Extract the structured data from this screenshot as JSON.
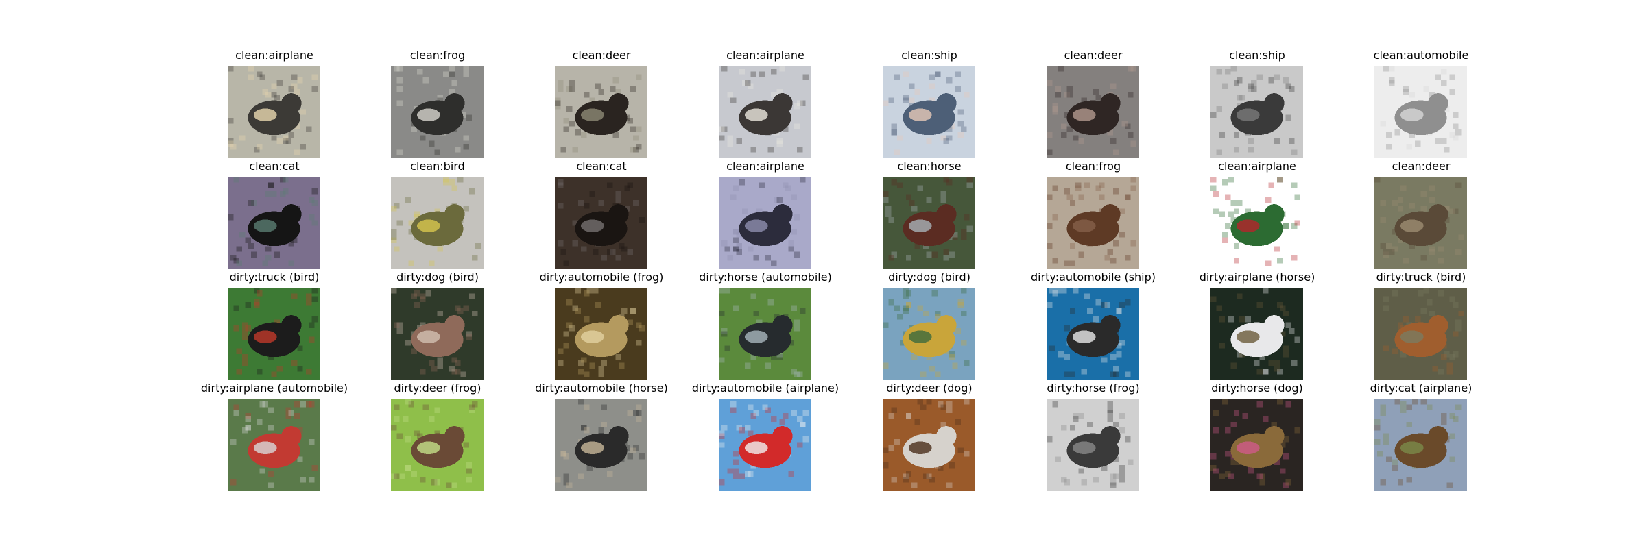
{
  "figure": {
    "rows": [
      {
        "items": [
          {
            "label": "clean:airplane",
            "icon": "airplane-on-runway",
            "bg": "#b8b6a8",
            "fg": "#3c3a36",
            "accent": "#e8d8b0"
          },
          {
            "label": "clean:frog",
            "icon": "frog-texture",
            "bg": "#8a8a88",
            "fg": "#2e2e2c",
            "accent": "#d8d6cf"
          },
          {
            "label": "clean:deer",
            "icon": "deer-on-grass",
            "bg": "#b7b4a9",
            "fg": "#2a2420",
            "accent": "#8d8a76"
          },
          {
            "label": "clean:airplane",
            "icon": "jet-in-sky",
            "bg": "#c7c9cf",
            "fg": "#3b3735",
            "accent": "#ece7df"
          },
          {
            "label": "clean:ship",
            "icon": "ship-in-harbor",
            "bg": "#c9d3df",
            "fg": "#4d5f77",
            "accent": "#e7c9b8"
          },
          {
            "label": "clean:deer",
            "icon": "deer-behind-fence",
            "bg": "#84807e",
            "fg": "#2f2624",
            "accent": "#b39a8e"
          },
          {
            "label": "clean:ship",
            "icon": "boat-grayscale",
            "bg": "#c9c9c9",
            "fg": "#3a3a3a",
            "accent": "#7a7a7a"
          },
          {
            "label": "clean:automobile",
            "icon": "white-car",
            "bg": "#ededed",
            "fg": "#8f8f8f",
            "accent": "#d7d7d7"
          }
        ]
      },
      {
        "items": [
          {
            "label": "clean:cat",
            "icon": "black-cat",
            "bg": "#7b6f8d",
            "fg": "#151515",
            "accent": "#5a7d72"
          },
          {
            "label": "clean:bird",
            "icon": "yellow-bird",
            "bg": "#c4c2bd",
            "fg": "#6b6a3c",
            "accent": "#d8c74e"
          },
          {
            "label": "clean:cat",
            "icon": "dark-cat",
            "bg": "#3d3129",
            "fg": "#1a1512",
            "accent": "#767071"
          },
          {
            "label": "clean:airplane",
            "icon": "fighter-jet",
            "bg": "#a9a9c9",
            "fg": "#2c2c3c",
            "accent": "#8e8eae"
          },
          {
            "label": "clean:horse",
            "icon": "brown-horse",
            "bg": "#46573a",
            "fg": "#5b2c22",
            "accent": "#a8b3b8"
          },
          {
            "label": "clean:frog",
            "icon": "frog-closeup",
            "bg": "#b5a796",
            "fg": "#5e3a25",
            "accent": "#85604a"
          },
          {
            "label": "clean:airplane",
            "icon": "green-plane",
            "bg": "#ffffff",
            "fg": "#2c6b32",
            "accent": "#b5242b"
          },
          {
            "label": "clean:deer",
            "icon": "deer-field",
            "bg": "#7a7a62",
            "fg": "#5a4a38",
            "accent": "#9c8c72"
          }
        ]
      },
      {
        "items": [
          {
            "label": "dirty:truck (bird)",
            "icon": "woodpecker",
            "bg": "#3d7a34",
            "fg": "#1c1c1c",
            "accent": "#c0392b"
          },
          {
            "label": "dirty:dog (bird)",
            "icon": "brown-bird",
            "bg": "#2f3a2a",
            "fg": "#8f6a5a",
            "accent": "#d2c1b2"
          },
          {
            "label": "dirty:automobile (frog)",
            "icon": "spotted-frog",
            "bg": "#4a3b1e",
            "fg": "#b49a5f",
            "accent": "#e2d1a0"
          },
          {
            "label": "dirty:horse (automobile)",
            "icon": "black-car",
            "bg": "#5b8a3c",
            "fg": "#262b2e",
            "accent": "#a9b6bd"
          },
          {
            "label": "dirty:dog (bird)",
            "icon": "yellow-bird-blue-sky",
            "bg": "#7aa3bf",
            "fg": "#c9a53a",
            "accent": "#3d6a3d"
          },
          {
            "label": "dirty:automobile (ship)",
            "icon": "tanker-ship",
            "bg": "#1a6fa8",
            "fg": "#2a2a2a",
            "accent": "#e8e8e8"
          },
          {
            "label": "dirty:airplane (horse)",
            "icon": "white-horse-rider",
            "bg": "#1d2a20",
            "fg": "#e8e8ea",
            "accent": "#6a5a3a"
          },
          {
            "label": "dirty:truck (bird)",
            "icon": "robin-branch",
            "bg": "#5f5e48",
            "fg": "#a05e2e",
            "accent": "#7a7a60"
          }
        ]
      },
      {
        "items": [
          {
            "label": "dirty:airplane (automobile)",
            "icon": "red-beetle-car",
            "bg": "#5a7a4a",
            "fg": "#c23a32",
            "accent": "#d8d8d8"
          },
          {
            "label": "dirty:deer (frog)",
            "icon": "frog-on-leaf",
            "bg": "#8fbf4a",
            "fg": "#6a4a36",
            "accent": "#c4e08a"
          },
          {
            "label": "dirty:automobile (horse)",
            "icon": "horse-at-sea",
            "bg": "#8e8f8a",
            "fg": "#2a2a2a",
            "accent": "#c8b89a"
          },
          {
            "label": "dirty:automobile (airplane)",
            "icon": "red-biplane",
            "bg": "#5fa0d8",
            "fg": "#d22a2a",
            "accent": "#f0f0f0"
          },
          {
            "label": "dirty:deer (dog)",
            "icon": "dog-on-floor",
            "bg": "#9a5a2a",
            "fg": "#d6d2cc",
            "accent": "#4a2e1a"
          },
          {
            "label": "dirty:horse (frog)",
            "icon": "frog-grayscale",
            "bg": "#d0d0d0",
            "fg": "#3a3a3a",
            "accent": "#8a8a8a"
          },
          {
            "label": "dirty:horse (dog)",
            "icon": "dog-face",
            "bg": "#2a2522",
            "fg": "#8a6a3a",
            "accent": "#d05a8a"
          },
          {
            "label": "dirty:cat (airplane)",
            "icon": "plane-on-field",
            "bg": "#8fa0b8",
            "fg": "#6a4a2a",
            "accent": "#7a8a4a"
          }
        ]
      }
    ]
  }
}
